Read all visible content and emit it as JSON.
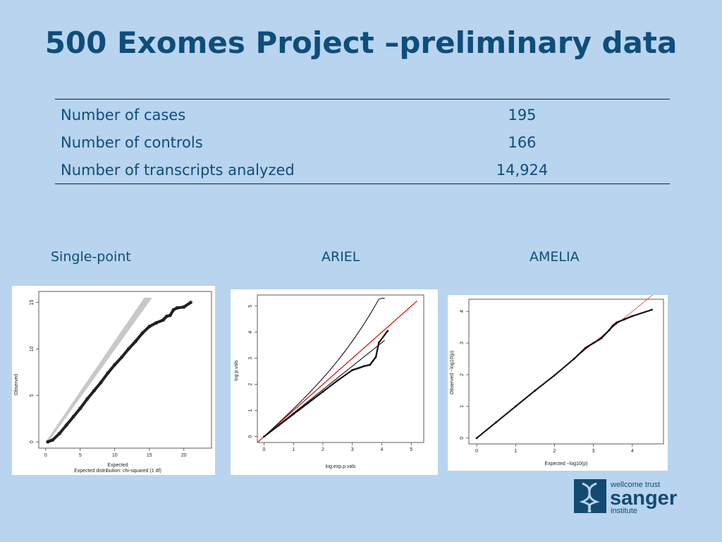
{
  "slide": {
    "title": "500 Exomes Project –preliminary data",
    "table": [
      {
        "label": "Number of cases",
        "value": "195"
      },
      {
        "label": "Number of controls",
        "value": "166"
      },
      {
        "label": "Number of transcripts analyzed",
        "value": "14,924"
      }
    ],
    "captions": {
      "single": "Single-point",
      "ariel": "ARIEL",
      "amelia": "AMELIA"
    },
    "logo": {
      "line1": "wellcome trust",
      "line2": "sanger",
      "line3": "institute"
    }
  },
  "colors": {
    "title": "#0f4d7a",
    "background": "#b8d4ee",
    "ref_line": "#e0241b"
  },
  "chart_data": [
    {
      "type": "scatter",
      "title": "",
      "xlabel": "Expected",
      "subtitle": "Expected distribution: chi-squared (1 df)",
      "ylabel": "Observed",
      "xlim": [
        0,
        23
      ],
      "ylim": [
        0,
        15.5
      ],
      "xticks": [
        "0",
        "5",
        "10",
        "15",
        "20"
      ],
      "yticks": [
        "0",
        "5",
        "10",
        "15"
      ],
      "series": [
        {
          "x": [
            0.3,
            1.0,
            2.0,
            3.0,
            4.0,
            5.0,
            6.0,
            7.0,
            8.0,
            9.0,
            10.0,
            11.0,
            12.0,
            13.0,
            14.0,
            15.0,
            16.0,
            17.0,
            17.5,
            18.0,
            18.5,
            19.0,
            20.0,
            21.0
          ],
          "y": [
            0.0,
            0.2,
            0.9,
            1.8,
            2.7,
            3.6,
            4.6,
            5.5,
            6.4,
            7.4,
            8.3,
            9.1,
            10.0,
            10.8,
            11.7,
            12.4,
            12.8,
            13.1,
            13.5,
            13.6,
            14.2,
            14.4,
            14.5,
            15.0
          ]
        }
      ]
    },
    {
      "type": "scatter",
      "title": "",
      "xlabel": "log.exp.p.vals",
      "ylabel": "log.p.vals",
      "xlim": [
        0,
        5.2
      ],
      "ylim": [
        0,
        5.2
      ],
      "xticks": [
        "0",
        "1",
        "2",
        "3",
        "4",
        "5"
      ],
      "yticks": [
        "0",
        "1",
        "2",
        "3",
        "4",
        "5"
      ],
      "series": [
        {
          "x": [
            0.0,
            0.5,
            1.0,
            1.5,
            2.0,
            2.5,
            3.0,
            3.2,
            3.4,
            3.6,
            3.8,
            3.9,
            4.2
          ],
          "y": [
            0.0,
            0.43,
            0.86,
            1.29,
            1.72,
            2.15,
            2.55,
            2.62,
            2.7,
            2.75,
            3.05,
            3.6,
            4.05
          ]
        }
      ]
    },
    {
      "type": "scatter",
      "title": "",
      "xlabel": "Expected −log10(p)",
      "ylabel": "Observed −log10(p)",
      "xlim": [
        0,
        4.6
      ],
      "ylim": [
        0,
        4.2
      ],
      "xticks": [
        "0",
        "1",
        "2",
        "3",
        "4"
      ],
      "yticks": [
        "0",
        "1",
        "2",
        "3",
        "4"
      ],
      "series": [
        {
          "x": [
            0.0,
            0.5,
            1.0,
            1.5,
            2.0,
            2.5,
            2.8,
            3.0,
            3.2,
            3.4,
            3.5,
            3.6,
            3.8,
            4.0,
            4.5
          ],
          "y": [
            0.0,
            0.5,
            1.0,
            1.5,
            1.98,
            2.5,
            2.85,
            3.0,
            3.15,
            3.4,
            3.55,
            3.65,
            3.75,
            3.85,
            4.05
          ]
        }
      ]
    }
  ]
}
